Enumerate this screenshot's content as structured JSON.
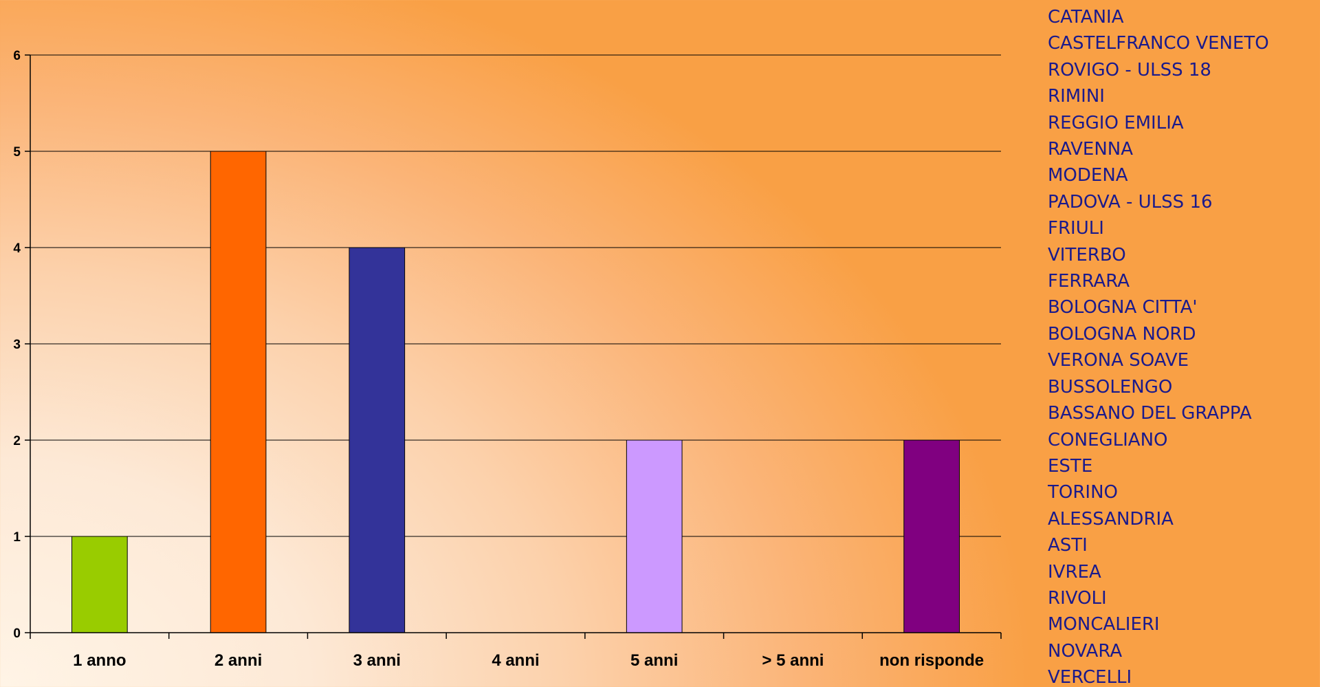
{
  "chart_data": {
    "type": "bar",
    "categories": [
      "1 anno",
      "2 anni",
      "3 anni",
      "4 anni",
      "5 anni",
      "> 5 anni",
      "non risponde"
    ],
    "values": [
      1,
      5,
      4,
      0,
      2,
      0,
      2
    ],
    "bar_colors": [
      "#99cc00",
      "#ff6600",
      "#333399",
      "#99ccff",
      "#cc99ff",
      "#99ccff",
      "#800080"
    ],
    "ylim": [
      0,
      6
    ],
    "yticks": [
      0,
      1,
      2,
      3,
      4,
      5,
      6
    ],
    "grid": true,
    "title": "",
    "xlabel": "",
    "ylabel": ""
  },
  "legend": {
    "items": [
      "CATANIA",
      "CASTELFRANCO VENETO",
      "ROVIGO - ULSS 18",
      "RIMINI",
      "REGGIO EMILIA",
      "RAVENNA",
      "MODENA",
      "PADOVA - ULSS 16",
      "FRIULI",
      "VITERBO",
      "FERRARA",
      "BOLOGNA CITTA'",
      "BOLOGNA NORD",
      "VERONA SOAVE",
      "BUSSOLENGO",
      "BASSANO DEL GRAPPA",
      "CONEGLIANO",
      "ESTE",
      "TORINO",
      "ALESSANDRIA",
      "ASTI",
      "IVREA",
      "RIVOLI",
      "MONCALIERI",
      "NOVARA",
      "VERCELLI"
    ],
    "text_color": "#1a1a8c"
  }
}
